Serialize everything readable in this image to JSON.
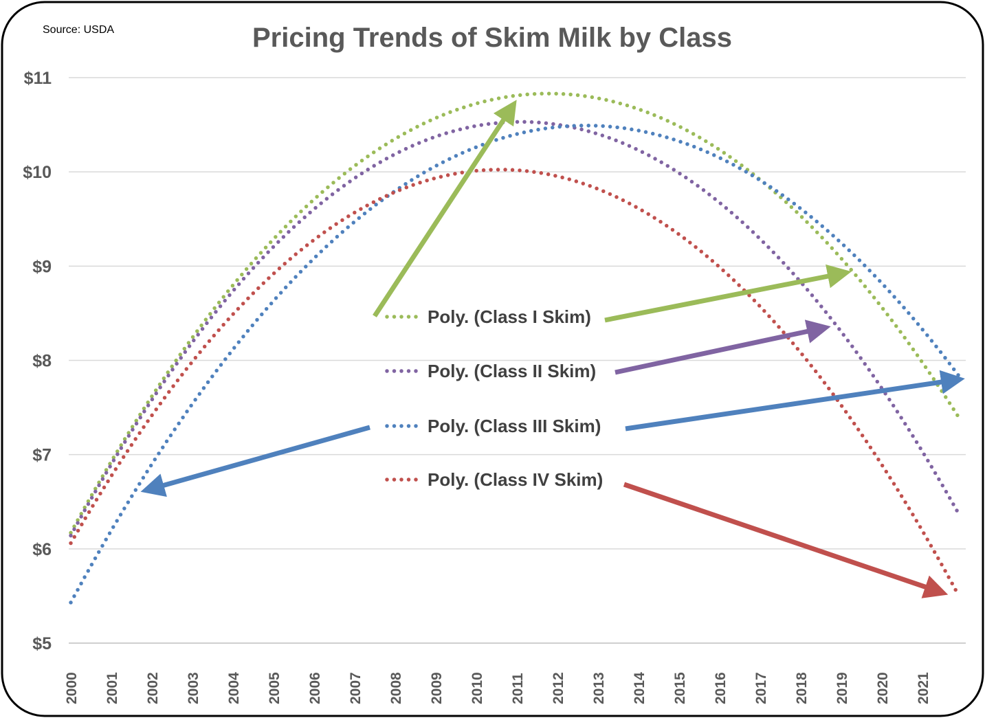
{
  "chart_data": {
    "type": "line",
    "title": "Pricing Trends of Skim Milk by Class",
    "source_note": "Source: USDA",
    "xlabel": "",
    "ylabel": "",
    "ylim": [
      5,
      11
    ],
    "y_ticks": [
      "$5",
      "$6",
      "$7",
      "$8",
      "$9",
      "$10",
      "$11"
    ],
    "x_ticks": [
      "2000",
      "2001",
      "2002",
      "2003",
      "2004",
      "2005",
      "2006",
      "2007",
      "2008",
      "2009",
      "2010",
      "2011",
      "2012",
      "2013",
      "2014",
      "2015",
      "2016",
      "2017",
      "2018",
      "2019",
      "2020",
      "2021"
    ],
    "grid": true,
    "legend_placement": "center (inside plot)",
    "x": [
      2000,
      2001,
      2002,
      2003,
      2004,
      2005,
      2006,
      2007,
      2008,
      2009,
      2010,
      2011,
      2012,
      2013,
      2014,
      2015,
      2016,
      2017,
      2018,
      2019,
      2020,
      2021,
      2021.9
    ],
    "series": [
      {
        "name": "Poly. (Class I Skim)",
        "color": "#9BBB59",
        "values": [
          6.17,
          6.93,
          7.62,
          8.24,
          8.8,
          9.29,
          9.71,
          10.06,
          10.35,
          10.57,
          10.73,
          10.81,
          10.83,
          10.78,
          10.67,
          10.48,
          10.23,
          9.92,
          9.53,
          9.08,
          8.56,
          7.98,
          7.39
        ]
      },
      {
        "name": "Poly. (Class II Skim)",
        "color": "#8064A2",
        "values": [
          6.14,
          6.9,
          7.58,
          8.19,
          8.74,
          9.21,
          9.6,
          9.93,
          10.19,
          10.38,
          10.49,
          10.53,
          10.5,
          10.4,
          10.23,
          9.99,
          9.67,
          9.29,
          8.83,
          8.3,
          7.7,
          7.03,
          6.37
        ]
      },
      {
        "name": "Poly. (Class III Skim)",
        "color": "#4F81BD",
        "values": [
          5.43,
          6.2,
          6.9,
          7.54,
          8.12,
          8.63,
          9.08,
          9.47,
          9.8,
          10.06,
          10.26,
          10.4,
          10.48,
          10.49,
          10.44,
          10.33,
          10.15,
          9.91,
          9.61,
          9.24,
          8.82,
          8.33,
          7.83
        ]
      },
      {
        "name": "Poly. (Class IV Skim)",
        "color": "#C0504D",
        "values": [
          6.06,
          6.77,
          7.42,
          7.99,
          8.49,
          8.92,
          9.28,
          9.57,
          9.79,
          9.93,
          10.01,
          10.02,
          9.95,
          9.82,
          9.61,
          9.34,
          8.99,
          8.57,
          8.08,
          7.52,
          6.89,
          6.19,
          5.5
        ]
      }
    ]
  }
}
